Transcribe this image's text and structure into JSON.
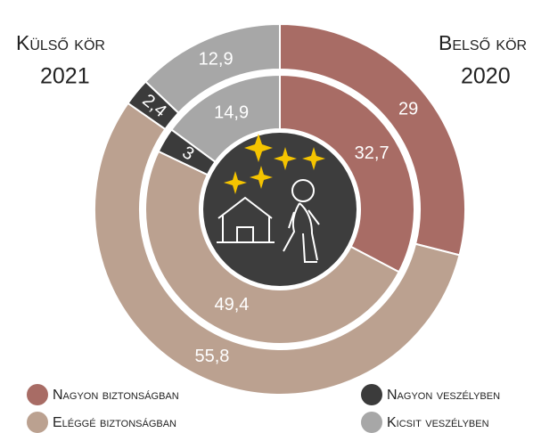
{
  "chart_data": {
    "type": "donut",
    "categories": [
      "Nagyon biztonságban",
      "Eléggé biztonságban",
      "Nagyon veszélyben",
      "Kicsit veszélyben"
    ],
    "colors": [
      "#a86c65",
      "#bba190",
      "#3b3b3b",
      "#a7a7a7"
    ],
    "series": [
      {
        "name": "Külső kör",
        "year": "2021",
        "values": [
          29,
          55.8,
          2.4,
          12.9
        ],
        "value_labels": [
          "29",
          "55,8",
          "2,4",
          "12,9"
        ]
      },
      {
        "name": "Belső kör",
        "year": "2020",
        "values": [
          32.7,
          49.4,
          3,
          14.9
        ],
        "value_labels": [
          "32,7",
          "49,4",
          "3",
          "14,9"
        ]
      }
    ]
  }
}
